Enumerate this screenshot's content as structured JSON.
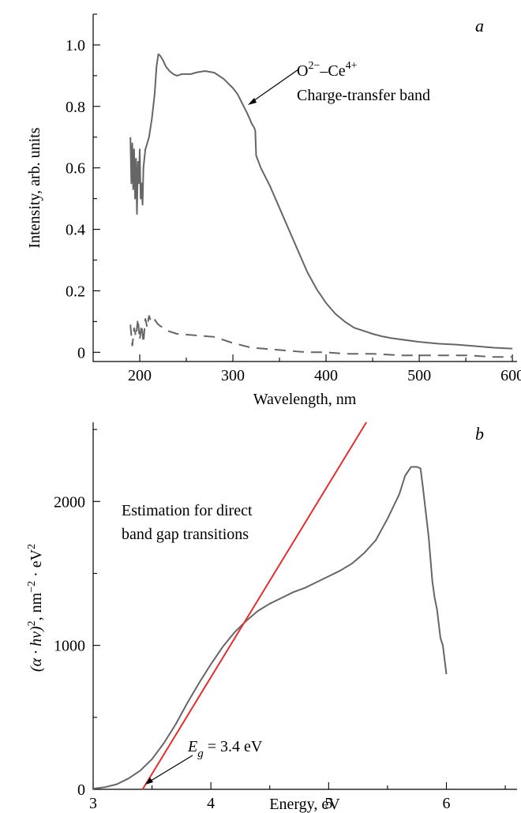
{
  "chart_data": [
    {
      "panel": "a",
      "type": "line",
      "xlabel": "Wavelength, nm",
      "ylabel": "Intensity, arb. units",
      "xlim": [
        150,
        605
      ],
      "ylim": [
        -0.03,
        1.1
      ],
      "xticks": [
        200,
        300,
        400,
        500,
        600
      ],
      "xtick_labels": [
        "200",
        "300",
        "400",
        "500",
        "600"
      ],
      "yticks": [
        0,
        0.2,
        0.4,
        0.6,
        0.8,
        1.0
      ],
      "ytick_labels": [
        "0",
        "0.2",
        "0.4",
        "0.6",
        "0.8",
        "1.0"
      ],
      "series": [
        {
          "style": "solid",
          "x": [
            190,
            191,
            192,
            193,
            194,
            195,
            196,
            197,
            198,
            199,
            200,
            201,
            202,
            203,
            204,
            205,
            206,
            208,
            210,
            213,
            216,
            218,
            220,
            222,
            225,
            228,
            232,
            236,
            240,
            245,
            250,
            255,
            260,
            270,
            280,
            290,
            300,
            305,
            310,
            315,
            318,
            320,
            322,
            323,
            324,
            325,
            330,
            340,
            350,
            360,
            370,
            380,
            390,
            400,
            410,
            420,
            430,
            440,
            450,
            460,
            470,
            480,
            500,
            520,
            540,
            560,
            580,
            600
          ],
          "y": [
            0.7,
            0.55,
            0.68,
            0.53,
            0.66,
            0.5,
            0.63,
            0.45,
            0.62,
            0.55,
            0.66,
            0.5,
            0.55,
            0.48,
            0.6,
            0.63,
            0.66,
            0.68,
            0.7,
            0.76,
            0.84,
            0.93,
            0.97,
            0.965,
            0.95,
            0.93,
            0.915,
            0.905,
            0.9,
            0.905,
            0.905,
            0.905,
            0.91,
            0.915,
            0.91,
            0.89,
            0.86,
            0.84,
            0.81,
            0.78,
            0.76,
            0.745,
            0.735,
            0.73,
            0.72,
            0.64,
            0.6,
            0.54,
            0.47,
            0.4,
            0.33,
            0.26,
            0.205,
            0.16,
            0.125,
            0.1,
            0.08,
            0.07,
            0.06,
            0.052,
            0.046,
            0.042,
            0.034,
            0.028,
            0.025,
            0.02,
            0.015,
            0.012
          ]
        },
        {
          "style": "dashed",
          "x": [
            190,
            192,
            194,
            196,
            198,
            200,
            202,
            204,
            206,
            208,
            210,
            212,
            215,
            220,
            230,
            240,
            260,
            280,
            300,
            320,
            340,
            360,
            380,
            400,
            420,
            450,
            480,
            500,
            520,
            550,
            580,
            600
          ],
          "y": [
            0.09,
            0.02,
            0.08,
            0.05,
            0.11,
            0.04,
            0.09,
            0.03,
            0.11,
            0.08,
            0.12,
            0.1,
            0.11,
            0.09,
            0.07,
            0.06,
            0.055,
            0.05,
            0.03,
            0.015,
            0.01,
            0.005,
            0.0,
            0.0,
            -0.005,
            -0.005,
            -0.01,
            -0.01,
            -0.01,
            -0.01,
            -0.015,
            -0.015
          ]
        }
      ],
      "annotations": [
        {
          "text": "O",
          "sup": "2−",
          "text2": "–Ce",
          "sup2": "4+",
          "point_at": [
            318,
            0.78
          ]
        },
        {
          "text": "Charge-transfer band"
        }
      ],
      "panel_label": "a"
    },
    {
      "panel": "b",
      "type": "line",
      "xlabel": "Energy, eV",
      "ylabel_parts": [
        "(α · hν)",
        "2",
        ", nm",
        "−2",
        " · eV",
        "2"
      ],
      "xlim": [
        3,
        6.6
      ],
      "ylim": [
        0,
        2550
      ],
      "xticks": [
        3,
        4,
        5,
        6
      ],
      "xtick_labels": [
        "3",
        "4",
        "5",
        "6"
      ],
      "yticks": [
        0,
        1000,
        2000
      ],
      "ytick_labels": [
        "0",
        "1000",
        "2000"
      ],
      "series": [
        {
          "style": "solid",
          "x": [
            3.0,
            3.1,
            3.2,
            3.3,
            3.4,
            3.5,
            3.6,
            3.7,
            3.8,
            3.9,
            4.0,
            4.1,
            4.2,
            4.3,
            4.4,
            4.5,
            4.6,
            4.7,
            4.8,
            4.9,
            5.0,
            5.1,
            5.2,
            5.3,
            5.4,
            5.5,
            5.6,
            5.65,
            5.7,
            5.75,
            5.78,
            5.8,
            5.85,
            5.88,
            5.9,
            5.92,
            5.95,
            5.97,
            6.0
          ],
          "y": [
            5,
            15,
            35,
            75,
            130,
            210,
            320,
            450,
            600,
            740,
            870,
            990,
            1090,
            1170,
            1240,
            1290,
            1330,
            1370,
            1400,
            1440,
            1480,
            1520,
            1570,
            1640,
            1730,
            1880,
            2050,
            2180,
            2240,
            2240,
            2230,
            2100,
            1750,
            1450,
            1330,
            1250,
            1050,
            1000,
            800
          ]
        },
        {
          "style": "fit",
          "x": [
            3.42,
            5.32
          ],
          "y": [
            0,
            2550
          ]
        }
      ],
      "annotations": [
        {
          "text": "Estimation for direct"
        },
        {
          "text": "band gap transitions"
        },
        {
          "text": "E",
          "sub": "g",
          "text2": " = 3.4 eV",
          "point_at": [
            3.44,
            0
          ]
        }
      ],
      "panel_label": "b"
    }
  ]
}
